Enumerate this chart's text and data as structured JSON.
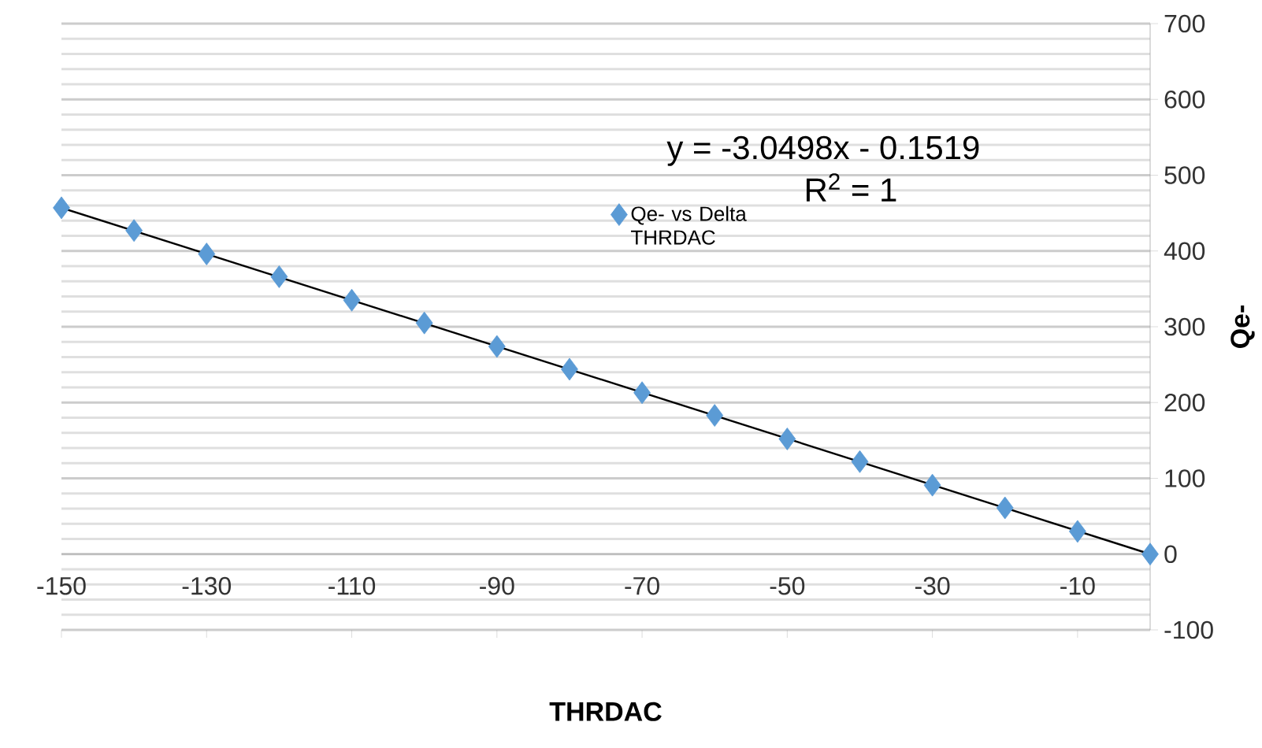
{
  "chart_data": {
    "type": "scatter",
    "xlabel": "THRDAC",
    "ylabel": "Qe-",
    "x": [
      -150,
      -140,
      -130,
      -120,
      -110,
      -100,
      -90,
      -80,
      -70,
      -60,
      -50,
      -40,
      -30,
      -20,
      -10,
      0
    ],
    "series": [
      {
        "name": "Qe- vs Delta THRDAC",
        "color": "#5b9bd5",
        "marker": "diamond",
        "values": [
          457,
          427,
          396,
          366,
          335,
          305,
          274,
          244,
          213,
          183,
          152,
          122,
          91,
          61,
          30,
          0
        ]
      },
      {
        "type": "line",
        "color": "#000000",
        "x": [
          -150,
          0
        ],
        "values": [
          457,
          0
        ]
      }
    ],
    "annotations": [
      "y = -3.0498x - 0.1519",
      "R$^{2}$ = 1"
    ],
    "xlim": [
      -150,
      0
    ],
    "ylim": [
      -100,
      700
    ],
    "xticks": [
      -150,
      -130,
      -110,
      -90,
      -70,
      -50,
      -30,
      -10
    ],
    "yticks": [
      -100,
      0,
      100,
      200,
      300,
      400,
      500,
      600,
      700
    ],
    "grid": "y",
    "legend": "top right"
  }
}
